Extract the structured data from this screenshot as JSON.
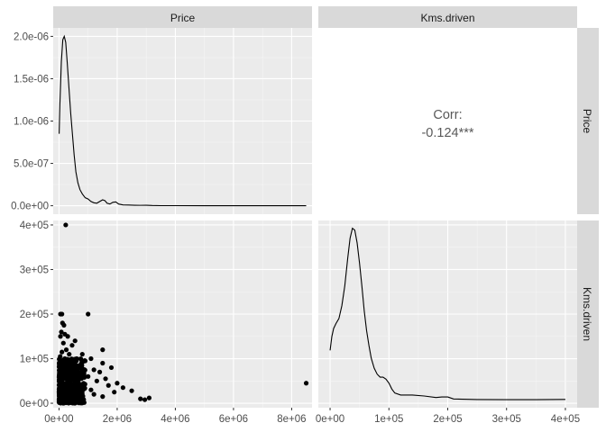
{
  "chart_data": {
    "type": "pairs",
    "variables": [
      "Price",
      "Kms.driven"
    ],
    "grid": true,
    "panels": {
      "price_density": {
        "type": "line",
        "xlim": [
          -200000,
          8700000
        ],
        "ylim": [
          -1e-07,
          2.1e-06
        ],
        "y_ticks": [
          {
            "value": 0.0,
            "label": "0.0e+00"
          },
          {
            "value": 5e-07,
            "label": "5.0e-07"
          },
          {
            "value": 1e-06,
            "label": "1.0e-06"
          },
          {
            "value": 1.5e-06,
            "label": "1.5e-06"
          },
          {
            "value": 2e-06,
            "label": "2.0e-06"
          }
        ],
        "points": [
          [
            5000,
            8.5e-07
          ],
          [
            30000,
            1.2e-06
          ],
          [
            80000,
            1.7e-06
          ],
          [
            130000,
            1.96e-06
          ],
          [
            180000,
            2e-06
          ],
          [
            230000,
            1.93e-06
          ],
          [
            280000,
            1.7e-06
          ],
          [
            340000,
            1.4e-06
          ],
          [
            400000,
            1.1e-06
          ],
          [
            460000,
            8.5e-07
          ],
          [
            520000,
            6e-07
          ],
          [
            580000,
            4e-07
          ],
          [
            650000,
            2.7e-07
          ],
          [
            720000,
            1.9e-07
          ],
          [
            800000,
            1.4e-07
          ],
          [
            900000,
            9.5e-08
          ],
          [
            1000000,
            8e-08
          ],
          [
            1100000,
            5e-08
          ],
          [
            1200000,
            3.5e-08
          ],
          [
            1300000,
            3e-08
          ],
          [
            1400000,
            5e-08
          ],
          [
            1500000,
            7e-08
          ],
          [
            1580000,
            6e-08
          ],
          [
            1650000,
            3e-08
          ],
          [
            1750000,
            2e-08
          ],
          [
            1850000,
            4e-08
          ],
          [
            1950000,
            4.5e-08
          ],
          [
            2050000,
            2e-08
          ],
          [
            2200000,
            1e-08
          ],
          [
            2400000,
            8e-09
          ],
          [
            2600000,
            6e-09
          ],
          [
            2800000,
            5e-09
          ],
          [
            3000000,
            6e-09
          ],
          [
            3200000,
            3e-09
          ],
          [
            3500000,
            1e-09
          ],
          [
            4000000,
            1e-09
          ],
          [
            5000000,
            0.0
          ],
          [
            6000000,
            0.0
          ],
          [
            7000000,
            0.0
          ],
          [
            8000000,
            0.0
          ],
          [
            8500000,
            0.0
          ]
        ]
      },
      "correlation": {
        "type": "text",
        "label": "Corr:",
        "value": "-0.124***"
      },
      "scatter": {
        "type": "scatter",
        "xlim": [
          -200000,
          8700000
        ],
        "ylim": [
          -10000,
          410000
        ],
        "x_ticks": [
          {
            "value": 0,
            "label": "0e+00"
          },
          {
            "value": 2000000,
            "label": "2e+06"
          },
          {
            "value": 4000000,
            "label": "4e+06"
          },
          {
            "value": 6000000,
            "label": "6e+06"
          },
          {
            "value": 8000000,
            "label": "8e+06"
          }
        ],
        "y_ticks": [
          {
            "value": 0,
            "label": "0e+00"
          },
          {
            "value": 100000,
            "label": "1e+05"
          },
          {
            "value": 200000,
            "label": "2e+05"
          },
          {
            "value": 300000,
            "label": "3e+05"
          },
          {
            "value": 400000,
            "label": "4e+05"
          }
        ],
        "points": [
          [
            230000,
            400000
          ],
          [
            50000,
            200000
          ],
          [
            100000,
            200000
          ],
          [
            1000000,
            200000
          ],
          [
            120000,
            180000
          ],
          [
            170000,
            175000
          ],
          [
            80000,
            160000
          ],
          [
            200000,
            155000
          ],
          [
            50000,
            150000
          ],
          [
            300000,
            150000
          ],
          [
            550000,
            140000
          ],
          [
            150000,
            135000
          ],
          [
            450000,
            130000
          ],
          [
            1500000,
            120000
          ],
          [
            250000,
            120000
          ],
          [
            100000,
            115000
          ],
          [
            800000,
            110000
          ],
          [
            350000,
            110000
          ],
          [
            40000,
            105000
          ],
          [
            600000,
            100000
          ],
          [
            1100000,
            100000
          ],
          [
            200000,
            100000
          ],
          [
            900000,
            95000
          ],
          [
            400000,
            95000
          ],
          [
            70000,
            90000
          ],
          [
            1500000,
            90000
          ],
          [
            300000,
            88000
          ],
          [
            700000,
            85000
          ],
          [
            130000,
            85000
          ],
          [
            1800000,
            80000
          ],
          [
            500000,
            80000
          ],
          [
            1200000,
            75000
          ],
          [
            1400000,
            70000
          ],
          [
            250000,
            70000
          ],
          [
            850000,
            65000
          ],
          [
            1000000,
            60000
          ],
          [
            1600000,
            55000
          ],
          [
            1300000,
            50000
          ],
          [
            2000000,
            45000
          ],
          [
            1700000,
            40000
          ],
          [
            2200000,
            35000
          ],
          [
            1100000,
            30000
          ],
          [
            2500000,
            28000
          ],
          [
            1900000,
            25000
          ],
          [
            8500000,
            45000
          ],
          [
            2800000,
            10000
          ],
          [
            3100000,
            12000
          ],
          [
            2950000,
            8000
          ],
          [
            1200000,
            20000
          ],
          [
            1500000,
            15000
          ],
          [
            600000,
            55000
          ],
          [
            750000,
            25000
          ]
        ],
        "cluster": {
          "x_range": [
            0,
            900000
          ],
          "y_range": [
            0,
            100000
          ],
          "count": 450
        }
      },
      "kms_density": {
        "type": "line",
        "xlim": [
          -20000,
          420000
        ],
        "x_ticks": [
          {
            "value": 0,
            "label": "0e+00"
          },
          {
            "value": 100000,
            "label": "1e+05"
          },
          {
            "value": 200000,
            "label": "2e+05"
          },
          {
            "value": 300000,
            "label": "3e+05"
          },
          {
            "value": 400000,
            "label": "4e+05"
          }
        ],
        "points": [
          [
            0,
            5e-06
          ],
          [
            3000,
            6.4e-06
          ],
          [
            6000,
            7.2e-06
          ],
          [
            10000,
            7.7e-06
          ],
          [
            15000,
            8.2e-06
          ],
          [
            20000,
            9.5e-06
          ],
          [
            25000,
            1.15e-05
          ],
          [
            30000,
            1.43e-05
          ],
          [
            34000,
            1.63e-05
          ],
          [
            38000,
            1.73e-05
          ],
          [
            42000,
            1.71e-05
          ],
          [
            46000,
            1.58e-05
          ],
          [
            50000,
            1.38e-05
          ],
          [
            54000,
            1.15e-05
          ],
          [
            58000,
            9e-06
          ],
          [
            62000,
            7e-06
          ],
          [
            66000,
            5.5e-06
          ],
          [
            70000,
            4.2e-06
          ],
          [
            75000,
            3.2e-06
          ],
          [
            80000,
            2.6e-06
          ],
          [
            85000,
            2.3e-06
          ],
          [
            90000,
            2.3e-06
          ],
          [
            95000,
            2.1e-06
          ],
          [
            100000,
            1.7e-06
          ],
          [
            105000,
            1.1e-06
          ],
          [
            110000,
            7e-07
          ],
          [
            120000,
            5e-07
          ],
          [
            140000,
            5e-07
          ],
          [
            160000,
            4e-07
          ],
          [
            180000,
            2.5e-07
          ],
          [
            190000,
            3e-07
          ],
          [
            200000,
            3e-07
          ],
          [
            210000,
            1e-07
          ],
          [
            250000,
            4e-08
          ],
          [
            300000,
            3e-08
          ],
          [
            350000,
            3e-08
          ],
          [
            400000,
            5e-08
          ]
        ]
      }
    }
  }
}
